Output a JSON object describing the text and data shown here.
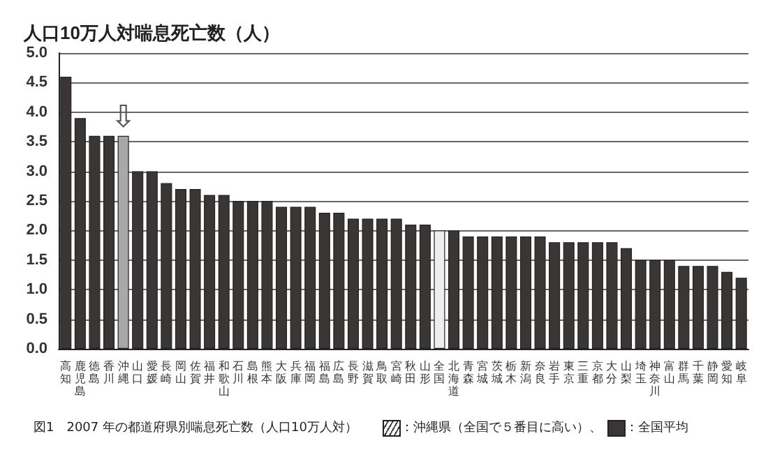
{
  "chart_data": {
    "type": "bar",
    "ylabel": "人口10万人対喘息死亡数（人）",
    "categories": [
      "高知",
      "鹿児島",
      "徳島",
      "香川",
      "沖縄",
      "山口",
      "愛媛",
      "長崎",
      "岡山",
      "佐賀",
      "福井",
      "和歌山",
      "石川",
      "島根",
      "熊本",
      "大阪",
      "兵庫",
      "福岡",
      "福島",
      "広島",
      "長野",
      "滋賀",
      "鳥取",
      "宮崎",
      "秋田",
      "山形",
      "全国",
      "北海道",
      "青森",
      "宮城",
      "茨城",
      "栃木",
      "新潟",
      "奈良",
      "岩手",
      "東京",
      "三重",
      "京都",
      "大分",
      "山梨",
      "埼玉",
      "神奈川",
      "富山",
      "群馬",
      "千葉",
      "静岡",
      "愛知",
      "岐阜"
    ],
    "values": [
      4.6,
      3.9,
      3.6,
      3.6,
      3.6,
      3.0,
      3.0,
      2.8,
      2.7,
      2.7,
      2.6,
      2.6,
      2.5,
      2.5,
      2.5,
      2.4,
      2.4,
      2.4,
      2.3,
      2.3,
      2.2,
      2.2,
      2.2,
      2.2,
      2.1,
      2.1,
      2.0,
      2.0,
      1.9,
      1.9,
      1.9,
      1.9,
      1.9,
      1.9,
      1.8,
      1.8,
      1.8,
      1.8,
      1.8,
      1.7,
      1.5,
      1.5,
      1.5,
      1.4,
      1.4,
      1.4,
      1.3,
      1.2
    ],
    "colors": [
      "#3a3636",
      "#3a3636",
      "#3a3636",
      "#3a3636",
      "#a8a8a8",
      "#3a3636",
      "#3a3636",
      "#3a3636",
      "#3a3636",
      "#3a3636",
      "#3a3636",
      "#3a3636",
      "#3a3636",
      "#3a3636",
      "#3a3636",
      "#3a3636",
      "#3a3636",
      "#3a3636",
      "#3a3636",
      "#3a3636",
      "#3a3636",
      "#3a3636",
      "#3a3636",
      "#3a3636",
      "#3a3636",
      "#3a3636",
      "#eeeeee",
      "#3a3636",
      "#3a3636",
      "#3a3636",
      "#3a3636",
      "#3a3636",
      "#3a3636",
      "#3a3636",
      "#3a3636",
      "#3a3636",
      "#3a3636",
      "#3a3636",
      "#3a3636",
      "#3a3636",
      "#3a3636",
      "#3a3636",
      "#3a3636",
      "#3a3636",
      "#3a3636",
      "#3a3636",
      "#3a3636",
      "#3a3636"
    ],
    "ylim": [
      0,
      5
    ],
    "yticks": [
      {
        "value": 0,
        "label": "0.0"
      },
      0.5,
      {
        "value": 1,
        "label": "1.0"
      },
      1.5,
      {
        "value": 2,
        "label": "2.0"
      },
      2.5,
      {
        "value": 3,
        "label": "3.0"
      },
      3.5,
      {
        "value": 4,
        "label": "4.0"
      },
      4.5,
      {
        "value": 5,
        "label": "5.0"
      }
    ],
    "grid": "y",
    "annotations": [
      "図1　2007 年の都道府県別喘息死亡数（人口10万人対）",
      "：沖縄県（全国で５番目に高い）、",
      "：全国平均",
      {
        "text": "⇩",
        "x": "沖縄",
        "y": 3.6
      }
    ]
  }
}
